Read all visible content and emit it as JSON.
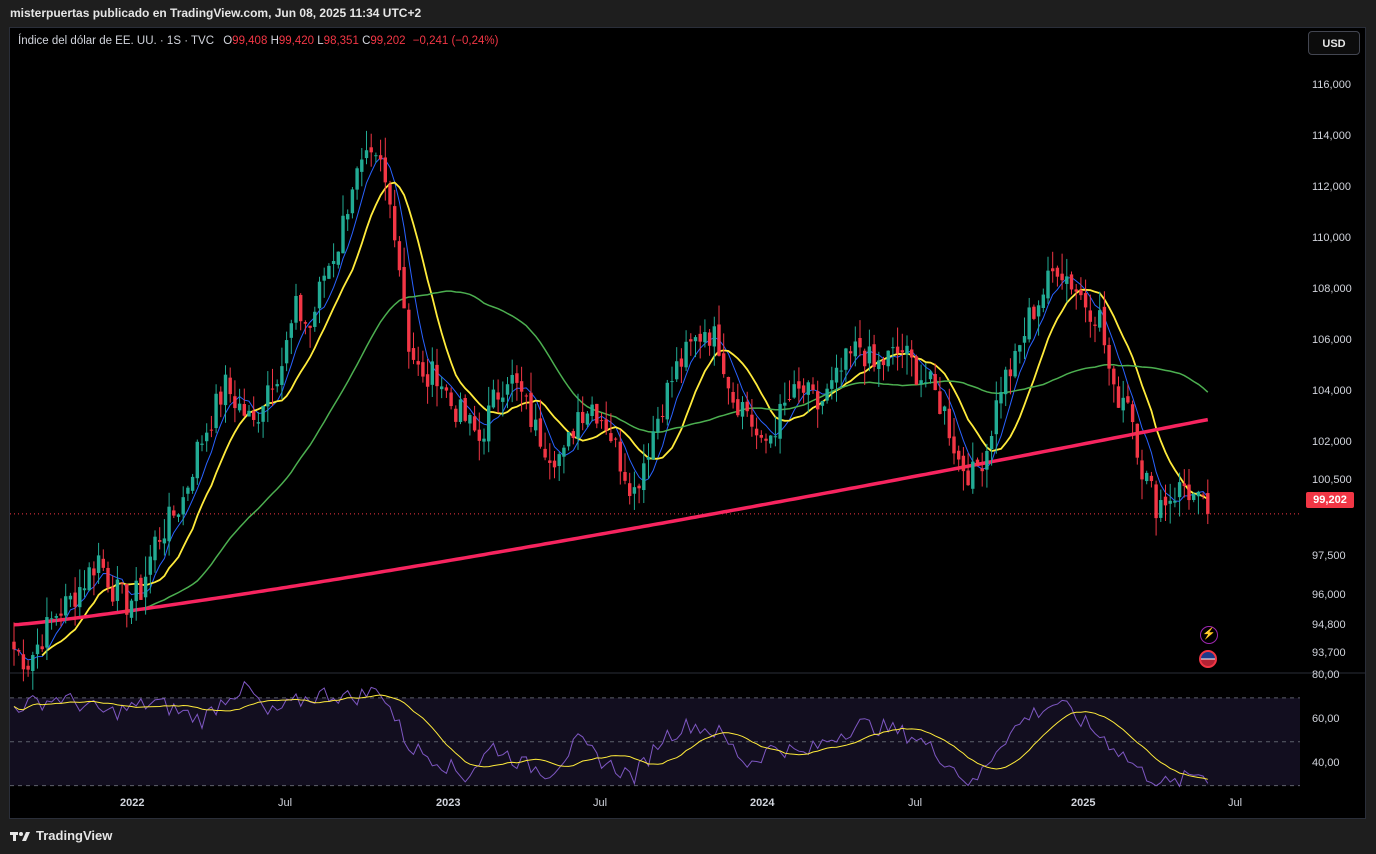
{
  "header": {
    "caption": "misterpuertas publicado en TradingView.com, Jun 08, 2025 11:34 UTC+2"
  },
  "legend": {
    "symbol": "Índice del dólar de EE. UU. · 1S · TVC",
    "o_label": "O",
    "o_value": "99,408",
    "h_label": "H",
    "h_value": "99,420",
    "l_label": "L",
    "l_value": "98,351",
    "c_label": "C",
    "c_value": "99,202",
    "change": "−0,241 (−0,24%)"
  },
  "currency_button": "USD",
  "last_price_tag": "99,202",
  "footer": {
    "brand": "TradingView"
  },
  "colors": {
    "up": "#22ab94",
    "down": "#f23645",
    "ma_fast": "#2962ff",
    "ma_mid": "#ffeb3b",
    "ma_slow": "#4caf50",
    "ma_long": "#f7245f",
    "rsi": "#7e57c2",
    "rsi_ma": "#ffeb3b"
  },
  "chart_data": {
    "type": "candlestick",
    "y_ticks": [
      "116,000",
      "114,000",
      "112,000",
      "110,000",
      "108,000",
      "106,000",
      "104,000",
      "102,000",
      "100,500",
      "97,500",
      "96,000",
      "94,800",
      "93,700"
    ],
    "x_ticks": [
      "2022",
      "Jul",
      "2023",
      "Jul",
      "2024",
      "Jul",
      "2025",
      "Jul"
    ],
    "rsi_ticks": [
      "80,00",
      "60,00",
      "40,00"
    ],
    "ylim": [
      93.0,
      117.0
    ],
    "rsi_lim": [
      28,
      80
    ],
    "last_close": 99.202,
    "weekly_closes_anchor": [
      [
        0,
        93.9
      ],
      [
        3,
        93.4
      ],
      [
        6,
        94.4
      ],
      [
        9,
        95.3
      ],
      [
        12,
        95.8
      ],
      [
        15,
        96.6
      ],
      [
        18,
        97.5
      ],
      [
        21,
        96.3
      ],
      [
        24,
        95.7
      ],
      [
        27,
        96.2
      ],
      [
        30,
        98.1
      ],
      [
        33,
        98.9
      ],
      [
        36,
        99.8
      ],
      [
        39,
        101.7
      ],
      [
        42,
        103.0
      ],
      [
        45,
        104.2
      ],
      [
        48,
        103.4
      ],
      [
        51,
        102.7
      ],
      [
        54,
        104.3
      ],
      [
        57,
        105.1
      ],
      [
        60,
        107.2
      ],
      [
        63,
        106.5
      ],
      [
        66,
        108.6
      ],
      [
        69,
        109.8
      ],
      [
        72,
        112.2
      ],
      [
        75,
        112.9
      ],
      [
        78,
        112.8
      ],
      [
        81,
        110.5
      ],
      [
        84,
        105.9
      ],
      [
        87,
        104.3
      ],
      [
        90,
        104.8
      ],
      [
        93,
        103.5
      ],
      [
        96,
        102.9
      ],
      [
        99,
        102.1
      ],
      [
        102,
        103.6
      ],
      [
        105,
        104.7
      ],
      [
        108,
        103.8
      ],
      [
        111,
        102.5
      ],
      [
        114,
        101.7
      ],
      [
        117,
        101.4
      ],
      [
        120,
        103.2
      ],
      [
        123,
        103.5
      ],
      [
        126,
        102.8
      ],
      [
        129,
        101.3
      ],
      [
        132,
        100.1
      ],
      [
        135,
        101.9
      ],
      [
        138,
        103.6
      ],
      [
        141,
        104.9
      ],
      [
        144,
        105.7
      ],
      [
        147,
        106.5
      ],
      [
        150,
        105.9
      ],
      [
        153,
        103.8
      ],
      [
        156,
        103.3
      ],
      [
        159,
        101.7
      ],
      [
        162,
        102.7
      ],
      [
        165,
        103.7
      ],
      [
        168,
        104.0
      ],
      [
        171,
        103.4
      ],
      [
        174,
        104.1
      ],
      [
        177,
        105.1
      ],
      [
        180,
        105.8
      ],
      [
        183,
        104.9
      ],
      [
        186,
        105.3
      ],
      [
        189,
        105.6
      ],
      [
        192,
        104.8
      ],
      [
        195,
        104.2
      ],
      [
        198,
        103.2
      ],
      [
        201,
        101.3
      ],
      [
        204,
        100.7
      ],
      [
        207,
        101.8
      ],
      [
        210,
        104.3
      ],
      [
        213,
        105.1
      ],
      [
        216,
        106.9
      ],
      [
        219,
        107.9
      ],
      [
        222,
        109.0
      ],
      [
        225,
        108.3
      ],
      [
        228,
        107.5
      ],
      [
        231,
        106.9
      ],
      [
        234,
        103.8
      ],
      [
        237,
        103.9
      ],
      [
        240,
        101.0
      ],
      [
        243,
        99.6
      ],
      [
        246,
        99.9
      ],
      [
        249,
        100.3
      ],
      [
        252,
        99.6
      ],
      [
        254,
        99.2
      ]
    ],
    "rsi_anchor": [
      [
        0,
        66
      ],
      [
        10,
        70
      ],
      [
        20,
        63
      ],
      [
        30,
        68
      ],
      [
        40,
        60
      ],
      [
        46,
        72
      ],
      [
        50,
        74
      ],
      [
        54,
        62
      ],
      [
        60,
        68
      ],
      [
        66,
        72
      ],
      [
        72,
        70
      ],
      [
        78,
        74
      ],
      [
        84,
        48
      ],
      [
        90,
        42
      ],
      [
        96,
        34
      ],
      [
        102,
        48
      ],
      [
        108,
        40
      ],
      [
        114,
        36
      ],
      [
        120,
        50
      ],
      [
        126,
        40
      ],
      [
        132,
        34
      ],
      [
        138,
        52
      ],
      [
        144,
        58
      ],
      [
        150,
        54
      ],
      [
        156,
        40
      ],
      [
        162,
        48
      ],
      [
        168,
        44
      ],
      [
        174,
        52
      ],
      [
        180,
        58
      ],
      [
        186,
        56
      ],
      [
        192,
        52
      ],
      [
        198,
        42
      ],
      [
        204,
        30
      ],
      [
        210,
        50
      ],
      [
        216,
        62
      ],
      [
        222,
        68
      ],
      [
        228,
        58
      ],
      [
        234,
        48
      ],
      [
        240,
        36
      ],
      [
        246,
        30
      ],
      [
        252,
        36
      ],
      [
        254,
        34
      ]
    ]
  }
}
